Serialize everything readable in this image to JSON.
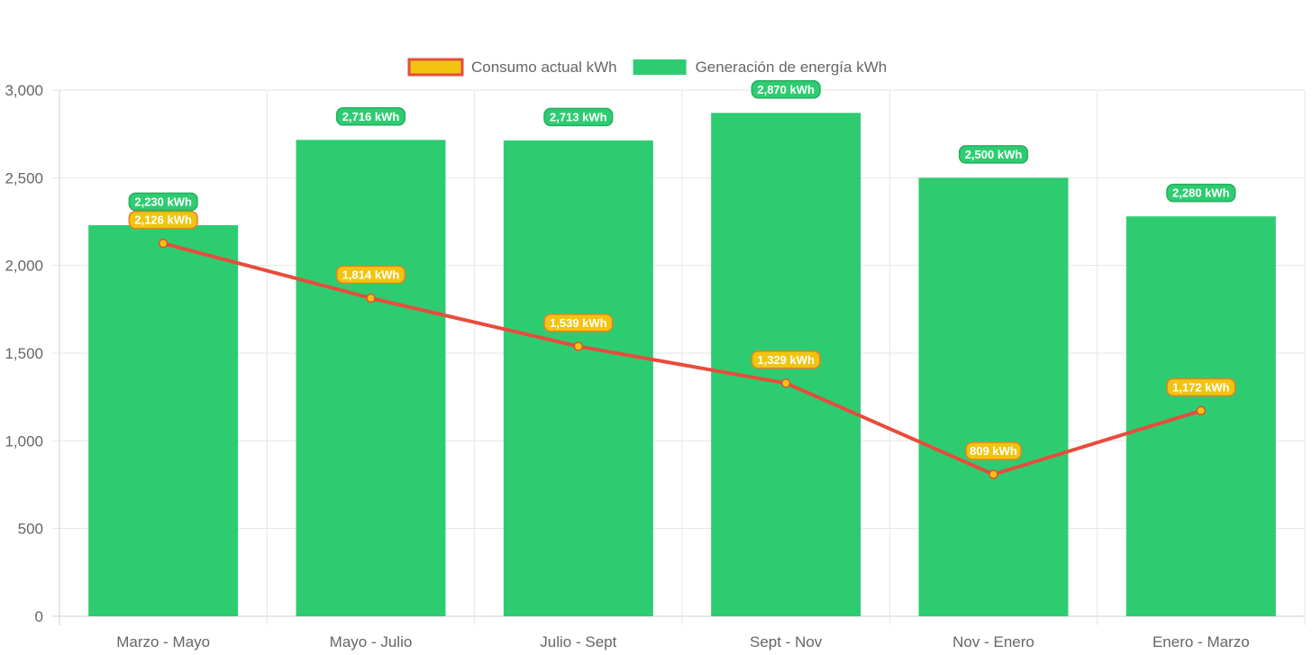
{
  "chart_data": {
    "type": "bar",
    "categories": [
      "Marzo - Mayo",
      "Mayo - Julio",
      "Julio - Sept",
      "Sept - Nov",
      "Nov - Enero",
      "Enero - Marzo"
    ],
    "series": [
      {
        "name": "Generación de energía kWh",
        "type": "bar",
        "color": "#2ecc71",
        "values": [
          2230,
          2716,
          2713,
          2870,
          2500,
          2280
        ],
        "labels": [
          "2,230 kWh",
          "2,716 kWh",
          "2,713 kWh",
          "2,870 kWh",
          "2,500 kWh",
          "2,280 kWh"
        ]
      },
      {
        "name": "Consumo actual kWh",
        "type": "line",
        "color": "#e74c3c",
        "point_color": "#f1c40f",
        "values": [
          2126,
          1814,
          1539,
          1329,
          809,
          1172
        ],
        "labels": [
          "2,126 kWh",
          "1,814 kWh",
          "1,539 kWh",
          "1,329 kWh",
          "809 kWh",
          "1,172 kWh"
        ]
      }
    ],
    "legend": {
      "position": "top",
      "items": [
        {
          "label": "Consumo actual kWh",
          "fill": "#f1c40f",
          "stroke": "#e74c3c"
        },
        {
          "label": "Generación de energía kWh",
          "fill": "#2ecc71",
          "stroke": "#2ecc71"
        }
      ]
    },
    "y_ticks": [
      "0",
      "500",
      "1,000",
      "1,500",
      "2,000",
      "2,500",
      "3,000"
    ],
    "ylim": [
      0,
      3000
    ],
    "grid": true,
    "title": "",
    "xlabel": "",
    "ylabel": ""
  }
}
